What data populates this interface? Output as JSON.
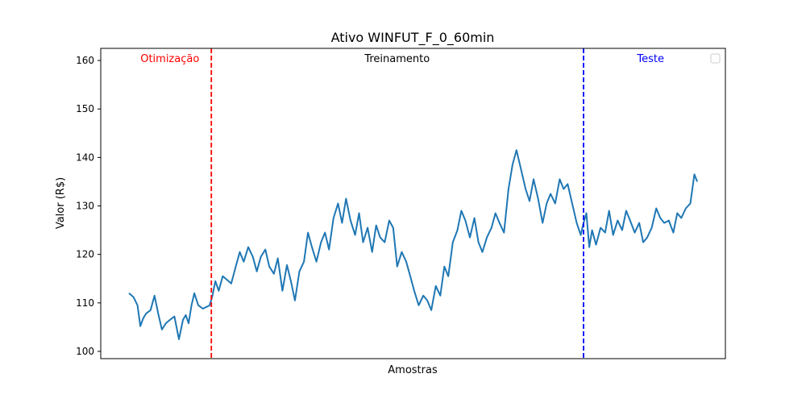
{
  "chart_data": {
    "type": "line",
    "title": "Ativo WINFUT_F_0_60min",
    "xlabel": "Amostras",
    "ylabel": "Valor (R$)",
    "ylim": [
      98.5,
      162.5
    ],
    "yticks": [
      100,
      110,
      120,
      130,
      140,
      150,
      160
    ],
    "ytick_labels": [
      "100",
      "110",
      "120",
      "130",
      "140",
      "150",
      "160"
    ],
    "xticks_shown": false,
    "grid": false,
    "legend": "top-right, empty",
    "x_range": [
      0,
      1000
    ],
    "split_markers": [
      {
        "name": "otimizacao-line",
        "x": 145,
        "color": "#ff0000",
        "style": "dashed"
      },
      {
        "name": "teste-line",
        "x": 800,
        "color": "#0000ff",
        "style": "dashed"
      }
    ],
    "region_labels": [
      {
        "key": "otimizacao",
        "text": "Otimização",
        "x": 72,
        "color": "#ff0000"
      },
      {
        "key": "treinamento",
        "text": "Treinamento",
        "x": 472,
        "color": "#000000"
      },
      {
        "key": "teste",
        "text": "Teste",
        "x": 918,
        "color": "#0000ff"
      }
    ],
    "series": [
      {
        "color": "#1f77b4",
        "highlight_color": "#0000cc",
        "x": [
          0,
          8,
          15,
          20,
          25,
          30,
          38,
          45,
          52,
          58,
          65,
          72,
          80,
          88,
          95,
          100,
          105,
          110,
          115,
          122,
          130,
          137,
          142,
          147,
          152,
          158,
          165,
          172,
          180,
          188,
          195,
          202,
          210,
          218,
          225,
          232,
          240,
          247,
          255,
          262,
          270,
          278,
          285,
          292,
          300,
          308,
          315,
          322,
          330,
          338,
          345,
          352,
          360,
          368,
          375,
          382,
          390,
          398,
          405,
          412,
          420,
          428,
          435,
          442,
          450,
          458,
          465,
          472,
          480,
          488,
          495,
          502,
          510,
          518,
          525,
          532,
          540,
          548,
          555,
          562,
          570,
          578,
          585,
          592,
          600,
          608,
          615,
          622,
          630,
          638,
          645,
          652,
          660,
          668,
          675,
          682,
          690,
          698,
          705,
          712,
          720,
          728,
          735,
          742,
          750,
          758,
          765,
          772,
          780,
          788,
          795,
          800,
          805,
          810,
          815,
          822,
          830,
          838,
          845,
          852,
          860,
          868,
          875,
          882,
          890,
          898,
          905,
          912,
          920,
          928,
          935,
          942,
          950,
          958,
          965,
          972,
          980,
          988,
          995,
          1000
        ],
        "values": [
          112.0,
          111.2,
          109.5,
          105.2,
          106.8,
          107.8,
          108.5,
          111.5,
          107.5,
          104.5,
          105.8,
          106.5,
          107.2,
          102.5,
          106.5,
          107.5,
          105.8,
          109.5,
          112.0,
          109.5,
          108.8,
          109.2,
          109.5,
          111.5,
          114.5,
          112.5,
          115.5,
          114.8,
          114.0,
          117.5,
          120.5,
          118.5,
          121.5,
          119.5,
          116.5,
          119.5,
          121.0,
          117.5,
          116.0,
          119.2,
          112.5,
          117.8,
          114.5,
          110.5,
          116.5,
          118.5,
          124.5,
          121.5,
          118.5,
          122.5,
          124.5,
          121.0,
          127.5,
          130.5,
          126.5,
          131.5,
          127.0,
          124.0,
          128.5,
          122.5,
          125.5,
          120.5,
          126.0,
          123.5,
          122.5,
          127.0,
          125.5,
          117.5,
          120.5,
          118.5,
          115.5,
          112.5,
          109.5,
          111.5,
          110.5,
          108.5,
          113.5,
          111.5,
          117.5,
          115.5,
          122.5,
          125.0,
          129.0,
          127.0,
          123.5,
          127.5,
          122.5,
          120.5,
          123.5,
          125.5,
          128.5,
          126.5,
          124.5,
          133.5,
          138.5,
          141.5,
          137.5,
          133.5,
          131.0,
          135.5,
          131.5,
          126.5,
          130.5,
          132.5,
          130.5,
          135.5,
          133.5,
          134.5,
          130.5,
          126.5,
          124.0,
          126.5,
          128.5,
          121.5,
          125.0,
          122.0,
          125.5,
          124.5,
          129.0,
          124.0,
          127.0,
          125.0,
          129.0,
          127.0,
          124.5,
          126.5,
          122.5,
          123.5,
          125.5,
          129.5,
          127.5,
          126.5,
          127.0,
          124.5,
          128.5,
          127.5,
          129.5,
          130.5,
          136.5,
          135.0
        ]
      }
    ]
  }
}
